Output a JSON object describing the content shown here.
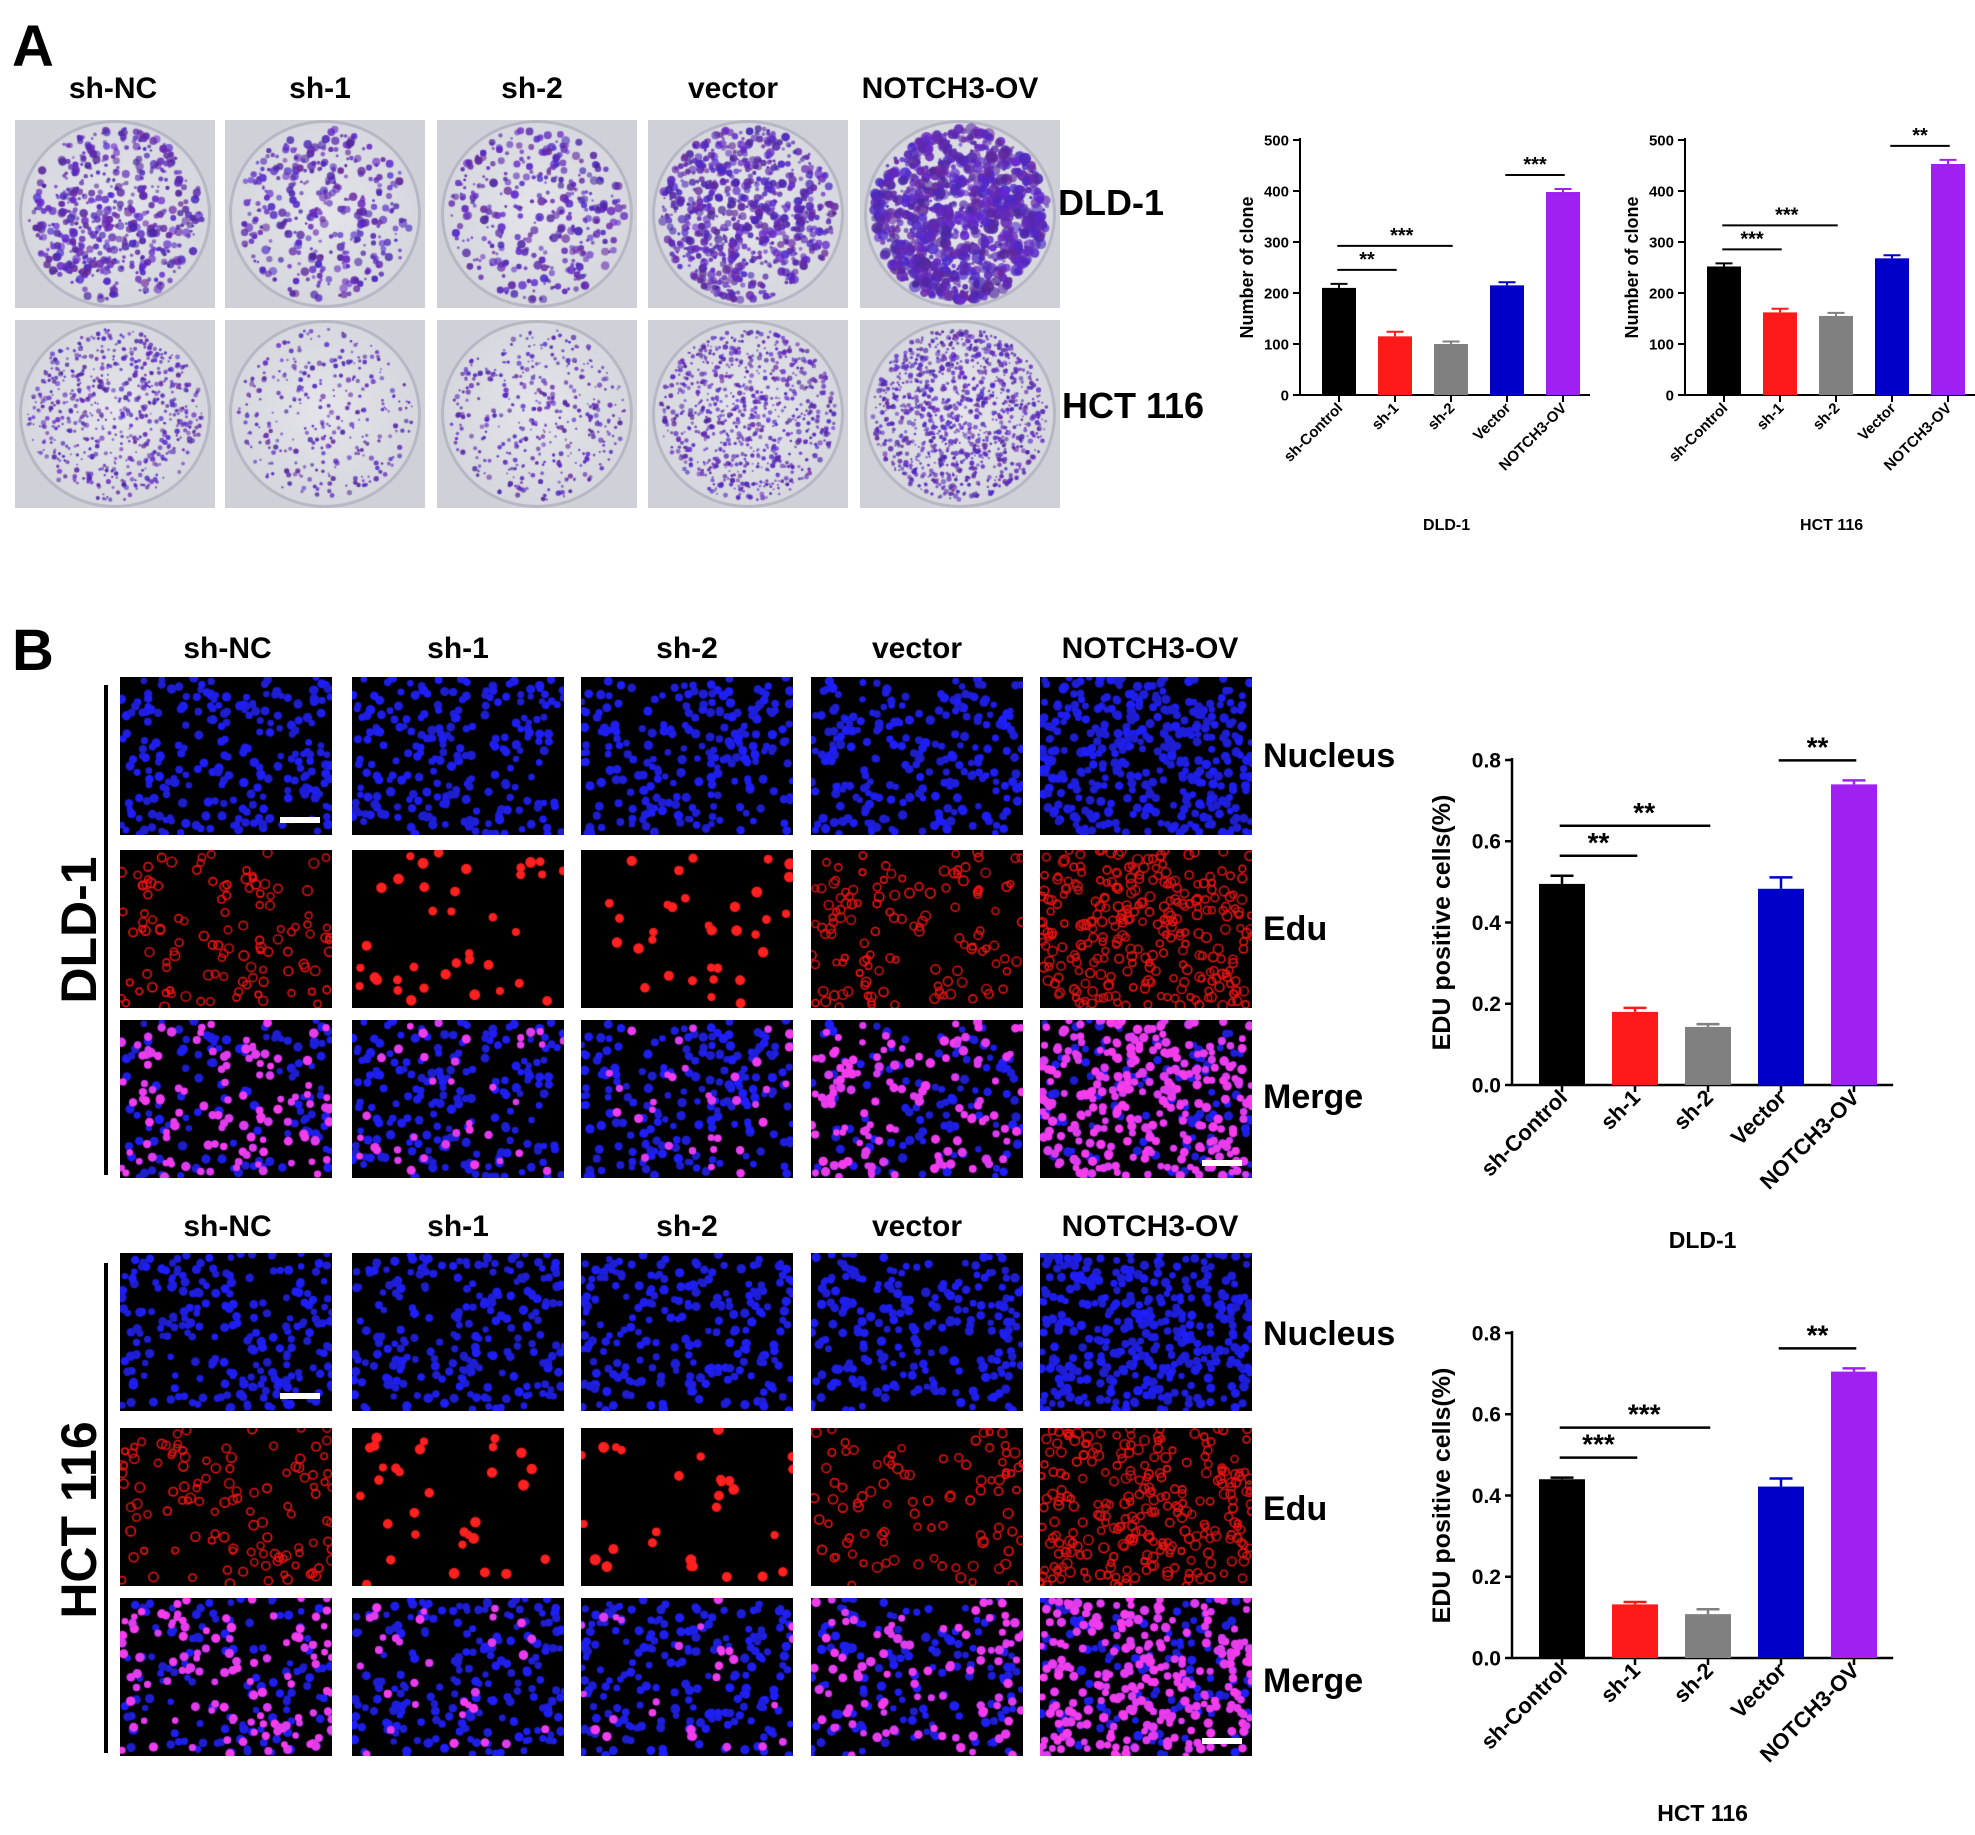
{
  "panel_a": {
    "letter": "A",
    "columns": [
      "sh-NC",
      "sh-1",
      "sh-2",
      "vector",
      "NOTCH3-OV"
    ],
    "rows": [
      "DLD-1",
      "HCT 116"
    ],
    "colony_density": [
      [
        0.45,
        0.25,
        0.25,
        0.7,
        1.0
      ],
      [
        0.55,
        0.2,
        0.3,
        0.7,
        1.0
      ]
    ]
  },
  "panel_b": {
    "letter": "B",
    "columns": [
      "sh-NC",
      "sh-1",
      "sh-2",
      "vector",
      "NOTCH3-OV"
    ],
    "channels": [
      "Nucleus",
      "Edu",
      "Merge"
    ],
    "cell_lines": [
      "DLD-1",
      "HCT 116"
    ],
    "colors": {
      "nucleus": "#1a1aff",
      "edu": "#ff1a1a",
      "merge": "#ff40ff",
      "background": "#000000",
      "scale_bar": "#ffffff"
    },
    "edu_density": [
      [
        0.5,
        0.15,
        0.12,
        0.5,
        0.75
      ],
      [
        0.45,
        0.13,
        0.11,
        0.42,
        0.7
      ]
    ]
  },
  "chart_data": [
    {
      "type": "bar",
      "xlabel": "DLD-1",
      "ylabel": "Number of clone",
      "categories": [
        "sh-Control",
        "sh-1",
        "sh-2",
        "Vector",
        "NOTCH3-OV"
      ],
      "values": [
        210,
        115,
        100,
        215,
        398
      ],
      "errors": [
        8,
        9,
        5,
        6,
        6
      ],
      "colors": [
        "#000000",
        "#ff1a1a",
        "#808080",
        "#0000c8",
        "#a020f0"
      ],
      "ylim": [
        0,
        500
      ],
      "yticks": [
        "0",
        "100",
        "200",
        "300",
        "400",
        "500"
      ],
      "significance": [
        {
          "from": 0,
          "to": 1,
          "label": "**"
        },
        {
          "from": 0,
          "to": 2,
          "label": "***"
        },
        {
          "from": 3,
          "to": 4,
          "label": "***"
        }
      ]
    },
    {
      "type": "bar",
      "xlabel": "HCT 116",
      "ylabel": "Number of clone",
      "categories": [
        "sh-Control",
        "sh-1",
        "sh-2",
        "Vector",
        "NOTCH3-OV"
      ],
      "values": [
        252,
        162,
        155,
        268,
        453
      ],
      "errors": [
        6,
        7,
        6,
        6,
        8
      ],
      "colors": [
        "#000000",
        "#ff1a1a",
        "#808080",
        "#0000c8",
        "#a020f0"
      ],
      "ylim": [
        0,
        500
      ],
      "yticks": [
        "0",
        "100",
        "200",
        "300",
        "400",
        "500"
      ],
      "significance": [
        {
          "from": 0,
          "to": 1,
          "label": "***"
        },
        {
          "from": 0,
          "to": 2,
          "label": "***"
        },
        {
          "from": 3,
          "to": 4,
          "label": "**"
        }
      ]
    },
    {
      "type": "bar",
      "xlabel": "DLD-1",
      "ylabel": "EDU positive cells(%)",
      "categories": [
        "sh-Control",
        "sh-1",
        "sh-2",
        "Vector",
        "NOTCH3-OV"
      ],
      "values": [
        0.495,
        0.18,
        0.143,
        0.483,
        0.74
      ],
      "errors": [
        0.02,
        0.01,
        0.007,
        0.028,
        0.01
      ],
      "colors": [
        "#000000",
        "#ff1a1a",
        "#808080",
        "#0000c8",
        "#a020f0"
      ],
      "ylim": [
        0,
        0.8
      ],
      "yticks": [
        "0.0",
        "0.2",
        "0.4",
        "0.6",
        "0.8"
      ],
      "significance": [
        {
          "from": 0,
          "to": 1,
          "label": "**"
        },
        {
          "from": 0,
          "to": 2,
          "label": "**"
        },
        {
          "from": 3,
          "to": 4,
          "label": "**"
        }
      ]
    },
    {
      "type": "bar",
      "xlabel": "HCT 116",
      "ylabel": "EDU positive cells(%)",
      "categories": [
        "sh-Control",
        "sh-1",
        "sh-2",
        "Vector",
        "NOTCH3-OV"
      ],
      "values": [
        0.44,
        0.132,
        0.108,
        0.422,
        0.705
      ],
      "errors": [
        0.004,
        0.006,
        0.012,
        0.02,
        0.008
      ],
      "colors": [
        "#000000",
        "#ff1a1a",
        "#808080",
        "#0000c8",
        "#a020f0"
      ],
      "ylim": [
        0,
        0.8
      ],
      "yticks": [
        "0.0",
        "0.2",
        "0.4",
        "0.6",
        "0.8"
      ],
      "significance": [
        {
          "from": 0,
          "to": 1,
          "label": "***"
        },
        {
          "from": 0,
          "to": 2,
          "label": "***"
        },
        {
          "from": 3,
          "to": 4,
          "label": "**"
        }
      ]
    }
  ]
}
